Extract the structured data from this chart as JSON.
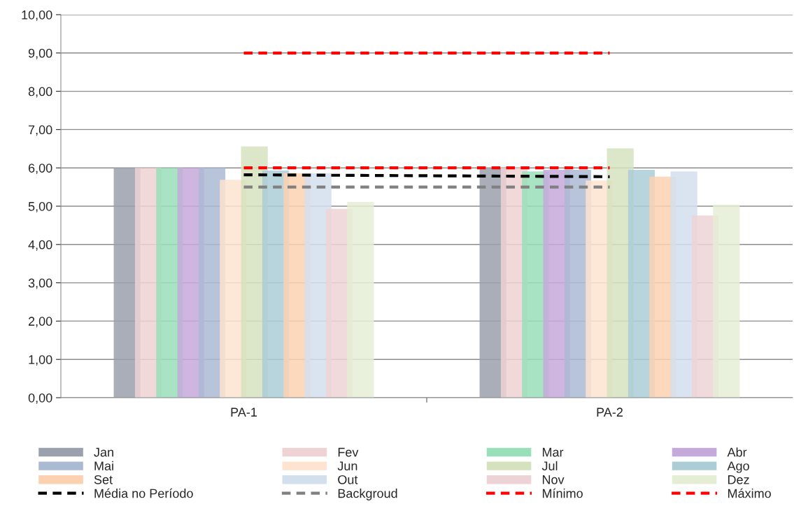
{
  "chart_data": {
    "type": "bar",
    "categories": [
      "PA-1",
      "PA-2"
    ],
    "series": [
      {
        "name": "Jan",
        "color": "#9aa0ac",
        "values": [
          6.0,
          6.0
        ]
      },
      {
        "name": "Fev",
        "color": "#efd2d4",
        "values": [
          6.0,
          6.0
        ]
      },
      {
        "name": "Mar",
        "color": "#99dfb9",
        "values": [
          6.0,
          5.91
        ]
      },
      {
        "name": "Abr",
        "color": "#c6a9db",
        "values": [
          6.0,
          5.95
        ]
      },
      {
        "name": "Mai",
        "color": "#abbad3",
        "values": [
          6.0,
          5.95
        ]
      },
      {
        "name": "Jun",
        "color": "#fde3d0",
        "values": [
          5.69,
          5.67
        ]
      },
      {
        "name": "Jul",
        "color": "#d6e2be",
        "values": [
          6.56,
          6.51
        ]
      },
      {
        "name": "Ago",
        "color": "#acccd6",
        "values": [
          5.93,
          5.95
        ]
      },
      {
        "name": "Set",
        "color": "#fbd1b1",
        "values": [
          5.86,
          5.77
        ]
      },
      {
        "name": "Out",
        "color": "#d4dfee",
        "values": [
          5.86,
          5.91
        ]
      },
      {
        "name": "Nov",
        "color": "#eed3d6",
        "values": [
          4.93,
          4.76
        ]
      },
      {
        "name": "Dez",
        "color": "#e5edd5",
        "values": [
          5.11,
          5.04
        ]
      },
      {
        "name": "Média no Período",
        "type": "line",
        "line_style": "dashed",
        "color": "#000000",
        "values": [
          5.82,
          5.77
        ]
      },
      {
        "name": "Backgroud",
        "type": "line",
        "line_style": "dashed",
        "color": "#808080",
        "values": [
          5.5,
          5.5
        ]
      },
      {
        "name": "Mínimo",
        "type": "line",
        "line_style": "dashed",
        "color": "#ff0000",
        "values": [
          6.0,
          6.0
        ]
      },
      {
        "name": "Máximo",
        "type": "line",
        "line_style": "dashed",
        "color": "#ff0000",
        "values": [
          9.0,
          9.0
        ]
      }
    ],
    "ylim": [
      0,
      10
    ],
    "yticks": [
      {
        "value": 0,
        "label": "0,00"
      },
      {
        "value": 1,
        "label": "1,00"
      },
      {
        "value": 2,
        "label": "2,00"
      },
      {
        "value": 3,
        "label": "3,00"
      },
      {
        "value": 4,
        "label": "4,00"
      },
      {
        "value": 5,
        "label": "5,00"
      },
      {
        "value": 6,
        "label": "6,00"
      },
      {
        "value": 7,
        "label": "7,00"
      },
      {
        "value": 8,
        "label": "8,00"
      },
      {
        "value": 9,
        "label": "9,00"
      },
      {
        "value": 10,
        "label": "10,00"
      }
    ],
    "grid": "y",
    "legend": "bottom"
  }
}
